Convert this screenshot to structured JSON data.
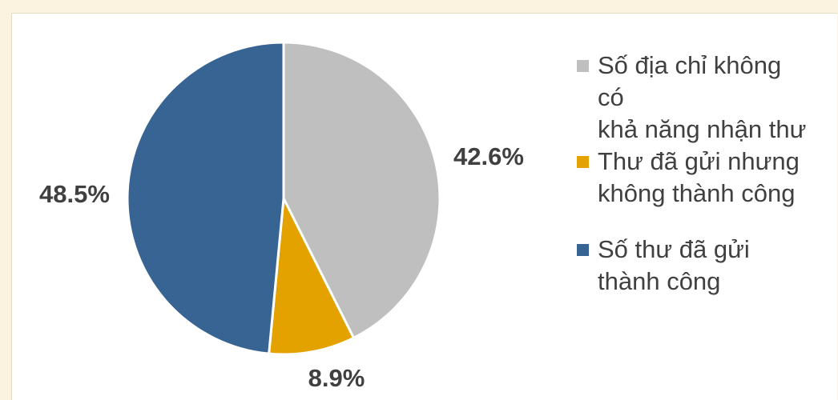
{
  "chart_data": {
    "type": "pie",
    "title": "",
    "slices": [
      {
        "label": "Số địa chỉ không có\nkhả năng nhận thư",
        "value": 42.6,
        "value_label": "42.6%",
        "color": "#bfbfbf"
      },
      {
        "label": "Thư đã gửi nhưng không thành công",
        "value": 8.9,
        "value_label": "8.9%",
        "color": "#e3a200"
      },
      {
        "label": "Số thư đã gửi thành công",
        "value": 48.5,
        "value_label": "48.5%",
        "color": "#376493"
      }
    ],
    "legend_position": "right",
    "start_angle": "12 o'clock",
    "direction": "clockwise"
  }
}
